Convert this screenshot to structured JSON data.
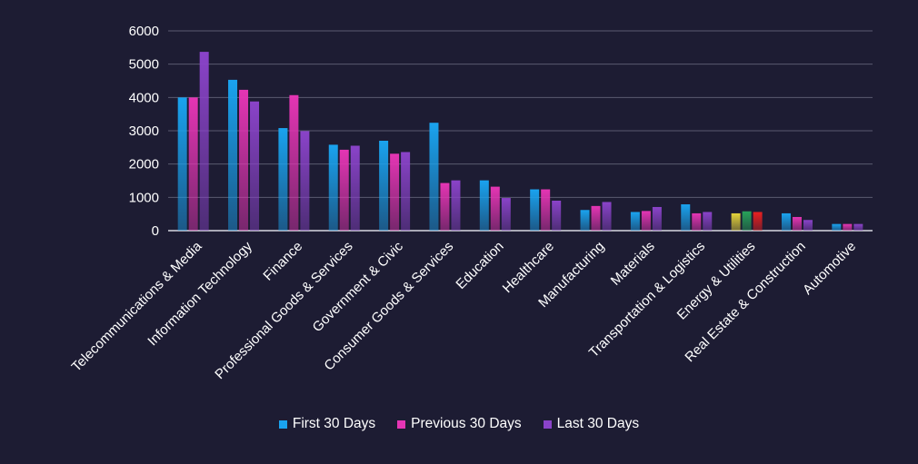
{
  "chart_data": {
    "type": "bar",
    "title": "",
    "xlabel": "",
    "ylabel": "",
    "ylim": [
      0,
      6000
    ],
    "yticks": [
      0,
      1000,
      2000,
      3000,
      4000,
      5000,
      6000
    ],
    "grid": true,
    "legend_position": "bottom",
    "categories": [
      "Telecommunications & Media",
      "Information Technology",
      "Finance",
      "Professional Goods & Services",
      "Government & Civic",
      "Consumer Goods &  Services",
      "Education",
      "Healthcare",
      "Manufacturing",
      "Materials",
      "Transportation & Logistics",
      "Energy & Utilities",
      "Real Estate & Construction",
      "Automotive"
    ],
    "series": [
      {
        "name": "First 30 Days",
        "color": "#1aa3ef",
        "values": [
          4000,
          4530,
          3080,
          2580,
          2700,
          3240,
          1510,
          1240,
          620,
          560,
          790,
          520,
          520,
          200
        ]
      },
      {
        "name": "Previous 30 Days",
        "color": "#e535b4",
        "values": [
          4000,
          4230,
          4070,
          2430,
          2310,
          1430,
          1320,
          1240,
          740,
          590,
          520,
          580,
          410,
          200
        ]
      },
      {
        "name": "Last 30 Days",
        "color": "#8a43c9",
        "values": [
          5370,
          3880,
          2990,
          2550,
          2360,
          1510,
          980,
          900,
          860,
          710,
          560,
          560,
          320,
          200
        ]
      }
    ],
    "point_colors": {
      "11": [
        "#e5d43a",
        "#27a35a",
        "#e82020"
      ]
    }
  }
}
